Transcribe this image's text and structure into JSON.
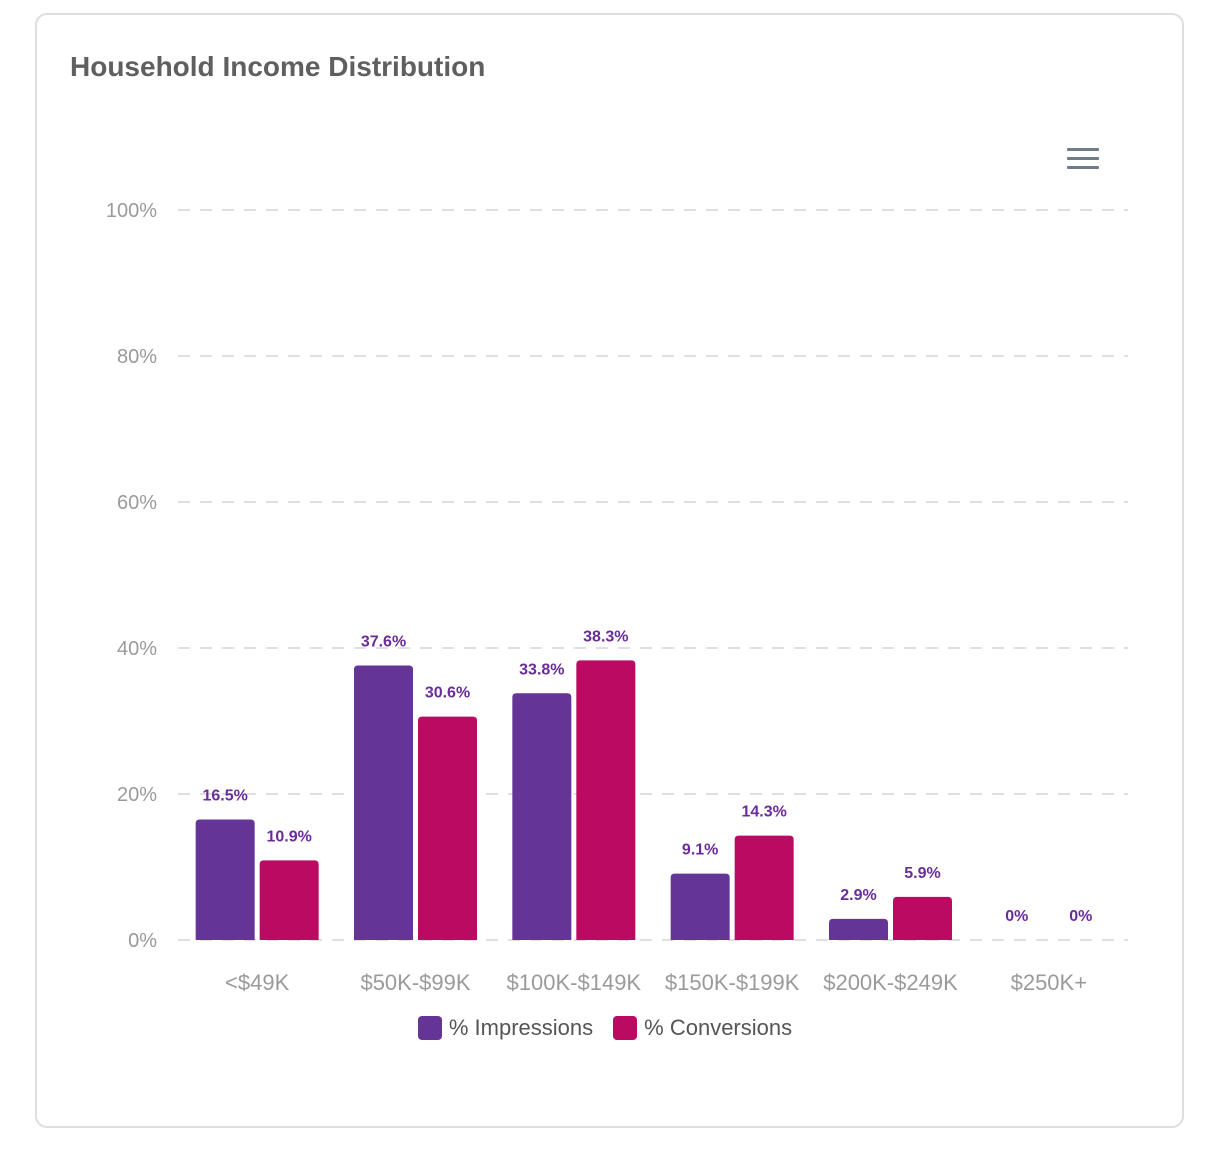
{
  "card": {
    "title": "Household Income Distribution"
  },
  "menu": {
    "icon": "hamburger-menu-icon"
  },
  "chart_data": {
    "type": "bar",
    "categories": [
      "<$49K",
      "$50K-$99K",
      "$100K-$149K",
      "$150K-$199K",
      "$200K-$249K",
      "$250K+"
    ],
    "series": [
      {
        "name": "% Impressions",
        "color": "#643597",
        "values": [
          16.5,
          37.6,
          33.8,
          9.1,
          2.9,
          0
        ],
        "labels": [
          "16.5%",
          "37.6%",
          "33.8%",
          "9.1%",
          "2.9%",
          "0%"
        ]
      },
      {
        "name": "% Conversions",
        "color": "#bb0a62",
        "values": [
          10.9,
          30.6,
          38.3,
          14.3,
          5.9,
          0
        ],
        "labels": [
          "10.9%",
          "30.6%",
          "38.3%",
          "14.3%",
          "5.9%",
          "0%"
        ]
      }
    ],
    "title": "Household Income Distribution",
    "xlabel": "",
    "ylabel": "",
    "ylim": [
      0,
      100
    ],
    "yticks": [
      0,
      20,
      40,
      60,
      80,
      100
    ],
    "ytick_labels": [
      "0%",
      "20%",
      "40%",
      "60%",
      "80%",
      "100%"
    ],
    "grid": "dashed horizontal",
    "legend": "bottom-center"
  }
}
